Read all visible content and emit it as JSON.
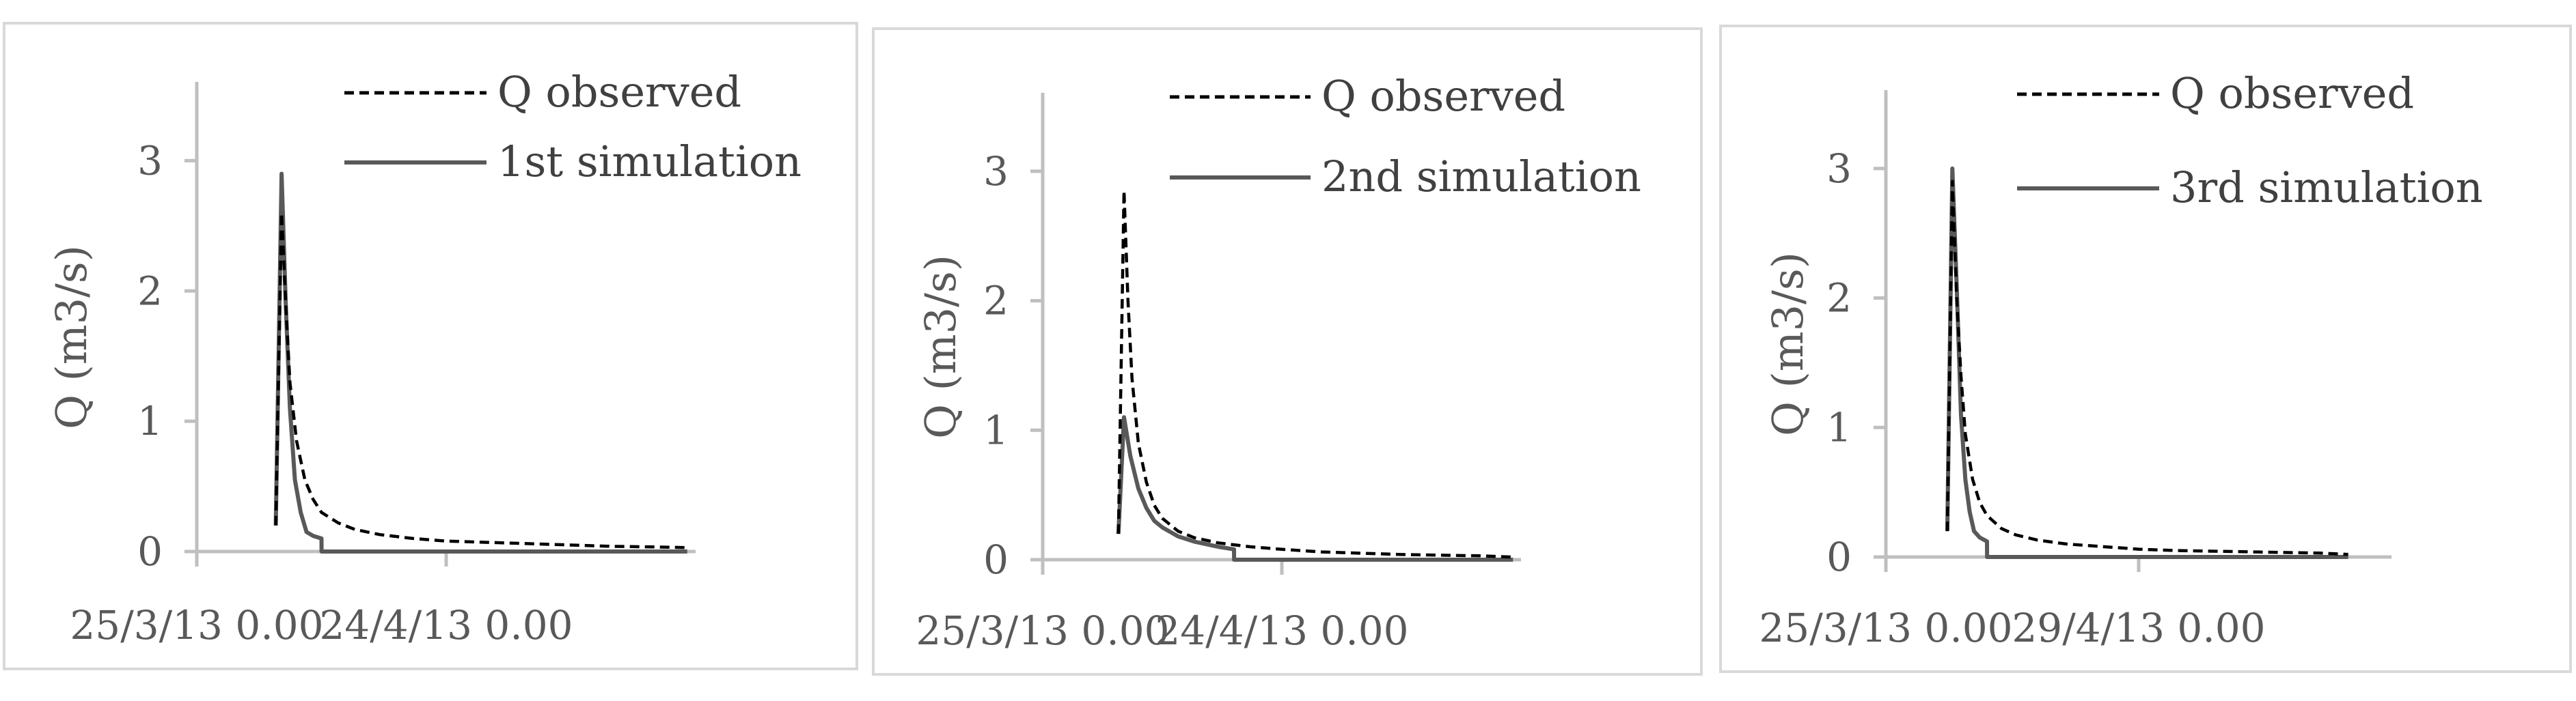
{
  "chart_data": [
    {
      "type": "line",
      "title": "",
      "xlabel": "",
      "ylabel": "Q (m3/s)",
      "ylim": [
        0,
        3.5
      ],
      "yticks": [
        "0",
        "1",
        "2",
        "3"
      ],
      "xtick_labels": [
        "25/3/13 0.00",
        "24/4/13 0.00"
      ],
      "x_unit": "days since first date tick",
      "xlim": [
        0,
        60
      ],
      "grid": false,
      "legend_position": "top-right",
      "series": [
        {
          "name": "Q observed",
          "style": "dashed",
          "color": "#000000",
          "x": [
            9.5,
            10.2,
            10.7,
            11.2,
            12,
            13,
            14,
            15,
            17,
            19,
            22,
            26,
            30,
            35,
            40,
            45,
            50,
            55,
            59
          ],
          "y": [
            0.2,
            2.6,
            1.9,
            1.3,
            0.85,
            0.55,
            0.4,
            0.3,
            0.22,
            0.17,
            0.13,
            0.1,
            0.08,
            0.07,
            0.06,
            0.05,
            0.04,
            0.035,
            0.03
          ]
        },
        {
          "name": "1st simulation",
          "style": "solid",
          "color": "#595959",
          "x": [
            9.5,
            10.2,
            10.7,
            11.2,
            11.8,
            12.5,
            13.2,
            14,
            15,
            15.01,
            59
          ],
          "y": [
            0.2,
            2.9,
            1.9,
            1.1,
            0.55,
            0.3,
            0.15,
            0.12,
            0.1,
            0.0,
            0.0
          ]
        }
      ]
    },
    {
      "type": "line",
      "title": "",
      "xlabel": "",
      "ylabel": "Q (m3/s)",
      "ylim": [
        0,
        3.5
      ],
      "yticks": [
        "0",
        "1",
        "2",
        "3"
      ],
      "xtick_labels": [
        "25/3/13 0.00",
        "24/4/13 0.00"
      ],
      "x_unit": "days since first date tick",
      "xlim": [
        0,
        60
      ],
      "grid": false,
      "legend_position": "top-right",
      "series": [
        {
          "name": "Q observed",
          "style": "dashed",
          "color": "#000000",
          "x": [
            9.5,
            10.2,
            10.7,
            11.2,
            12,
            13,
            14,
            15,
            17,
            19,
            22,
            26,
            30,
            35,
            40,
            45,
            50,
            55,
            59
          ],
          "y": [
            0.2,
            2.85,
            2.0,
            1.4,
            0.9,
            0.6,
            0.42,
            0.32,
            0.22,
            0.17,
            0.13,
            0.1,
            0.08,
            0.06,
            0.05,
            0.04,
            0.035,
            0.03,
            0.02
          ]
        },
        {
          "name": "2nd simulation",
          "style": "solid",
          "color": "#595959",
          "x": [
            9.5,
            10.2,
            11,
            12,
            13,
            14,
            15,
            17,
            19,
            22,
            24,
            24.01,
            59
          ],
          "y": [
            0.2,
            1.1,
            0.8,
            0.55,
            0.4,
            0.3,
            0.25,
            0.18,
            0.14,
            0.1,
            0.08,
            0.0,
            0.0
          ]
        }
      ]
    },
    {
      "type": "line",
      "title": "",
      "xlabel": "",
      "ylabel": "Q (m3/s)",
      "ylim": [
        0,
        3.5
      ],
      "yticks": [
        "0",
        "1",
        "2",
        "3"
      ],
      "xtick_labels": [
        "25/3/13 0.00",
        "29/4/13 0.00"
      ],
      "x_unit": "days since first date tick",
      "xlim": [
        0,
        70
      ],
      "grid": false,
      "legend_position": "top-right",
      "series": [
        {
          "name": "Q observed",
          "style": "dashed",
          "color": "#000000",
          "x": [
            8.5,
            9.2,
            9.8,
            10.4,
            11,
            12,
            13,
            14,
            16,
            18,
            21,
            25,
            30,
            35,
            40,
            45,
            50,
            55,
            60,
            64
          ],
          "y": [
            0.2,
            2.9,
            2.0,
            1.4,
            0.95,
            0.6,
            0.42,
            0.32,
            0.22,
            0.17,
            0.13,
            0.1,
            0.08,
            0.06,
            0.05,
            0.045,
            0.04,
            0.035,
            0.03,
            0.02
          ]
        },
        {
          "name": "3rd simulation",
          "style": "solid",
          "color": "#595959",
          "x": [
            8.5,
            9.2,
            9.8,
            10.4,
            11,
            11.6,
            12.2,
            13,
            14,
            14.01,
            64
          ],
          "y": [
            0.2,
            3.0,
            2.1,
            1.1,
            0.6,
            0.35,
            0.2,
            0.15,
            0.12,
            0.0,
            0.0
          ]
        }
      ]
    }
  ]
}
